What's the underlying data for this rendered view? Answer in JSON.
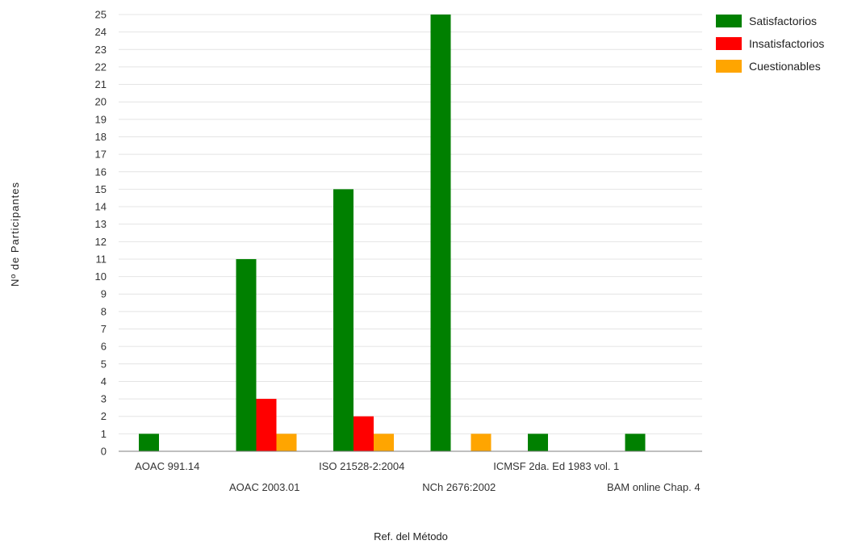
{
  "chart_data": {
    "type": "bar",
    "title": "",
    "xlabel": "Ref. del Método",
    "ylabel": "Nº de Participantes",
    "ylim": [
      0,
      25
    ],
    "ytick_step": 1,
    "grid": true,
    "legend_position": "top-right",
    "categories": [
      "AOAC 991.14",
      "AOAC 2003.01",
      "ISO 21528-2:2004",
      "NCh 2676:2002",
      "ICMSF 2da. Ed 1983 vol. 1",
      "BAM online Chap. 4"
    ],
    "series": [
      {
        "name": "Satisfactorios",
        "color": "#008000",
        "values": [
          1,
          11,
          15,
          25,
          1,
          1
        ]
      },
      {
        "name": "Insatisfactorios",
        "color": "#ff0000",
        "values": [
          0,
          3,
          2,
          0,
          0,
          0
        ]
      },
      {
        "name": "Cuestionables",
        "color": "#ffa500",
        "values": [
          0,
          1,
          1,
          1,
          0,
          0
        ]
      }
    ]
  }
}
